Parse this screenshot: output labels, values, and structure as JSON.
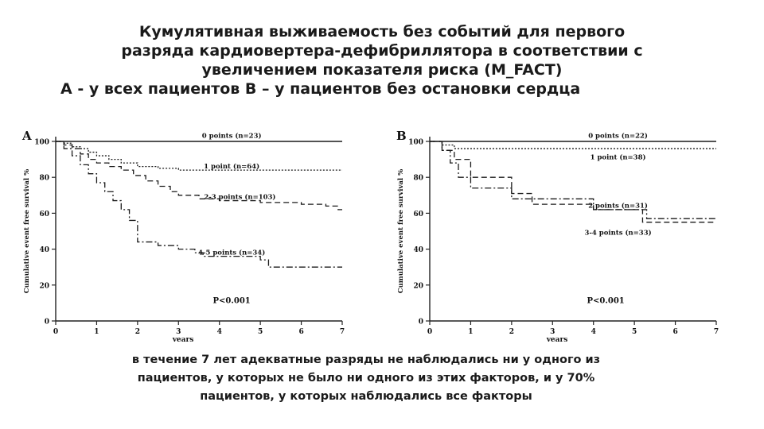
{
  "slide": {
    "title_lines": [
      "Кумулятивная выживаемость без событий для первого",
      "разряда кардиовертера-дефибриллятора в соответствии с",
      "увеличением показателя риска (M_FACT)",
      "A - у всех пациентов B – у пациентов без остановки сердца"
    ],
    "caption_lines": [
      "в течение 7 лет адекватные разряды не наблюдались ни у одного из",
      "пациентов, у которых не было ни одного из этих факторов, и у 70%",
      "пациентов, у которых наблюдались все факторы"
    ]
  },
  "colors": {
    "line": "#1a1a1a",
    "axis": "#222222",
    "background": "#ffffff"
  },
  "chart_data": [
    {
      "panel": "A",
      "type": "line",
      "step": true,
      "xlabel": "years",
      "ylabel": "Cumulative event free survival %",
      "xlim": [
        0,
        7
      ],
      "ylim": [
        0,
        100
      ],
      "xticks": [
        0,
        1,
        2,
        3,
        4,
        5,
        6,
        7
      ],
      "yticks": [
        0,
        20,
        40,
        60,
        80,
        100
      ],
      "annotation": "P<0.001",
      "series": [
        {
          "name": "0 points (n=23)",
          "style": "solid",
          "x": [
            0,
            7
          ],
          "y": [
            100,
            100
          ]
        },
        {
          "name": "1 point (n=64)",
          "style": "dotted",
          "x": [
            0,
            0.2,
            0.4,
            0.6,
            0.8,
            1.0,
            1.3,
            1.6,
            2.0,
            2.5,
            3.0,
            7
          ],
          "y": [
            100,
            99,
            97,
            96,
            94,
            92,
            90,
            88,
            86,
            85,
            84,
            84
          ]
        },
        {
          "name": "2-3 points (n=103)",
          "style": "dashed",
          "x": [
            0,
            0.2,
            0.4,
            0.6,
            0.8,
            1.0,
            1.3,
            1.6,
            1.9,
            2.2,
            2.5,
            2.8,
            3.0,
            3.5,
            4.0,
            5.0,
            5.5,
            6.0,
            6.6,
            6.9,
            7
          ],
          "y": [
            100,
            98,
            96,
            93,
            90,
            88,
            86,
            84,
            81,
            78,
            75,
            72,
            70,
            68,
            67,
            66,
            66,
            65,
            64,
            62,
            62
          ]
        },
        {
          "name": "4-5 points (n=34)",
          "style": "dashdot",
          "x": [
            0,
            0.2,
            0.4,
            0.6,
            0.8,
            1.0,
            1.2,
            1.4,
            1.6,
            1.8,
            2.0,
            2.5,
            3.0,
            3.4,
            3.6,
            5.0,
            5.2,
            7
          ],
          "y": [
            100,
            96,
            92,
            87,
            82,
            77,
            72,
            67,
            62,
            56,
            44,
            42,
            40,
            38,
            36,
            34,
            30,
            30
          ]
        }
      ]
    },
    {
      "panel": "B",
      "type": "line",
      "step": true,
      "xlabel": "years",
      "ylabel": "Cumulative event free survival %",
      "xlim": [
        0,
        7
      ],
      "ylim": [
        0,
        100
      ],
      "xticks": [
        0,
        1,
        2,
        3,
        4,
        5,
        6,
        7
      ],
      "yticks": [
        0,
        20,
        40,
        60,
        80,
        100
      ],
      "annotation": "P<0.001",
      "series": [
        {
          "name": "0 points (n=22)",
          "style": "solid",
          "x": [
            0,
            7
          ],
          "y": [
            100,
            100
          ]
        },
        {
          "name": "1 point (n=38)",
          "style": "dotted",
          "x": [
            0,
            0.3,
            0.6,
            7
          ],
          "y": [
            100,
            98,
            96,
            96
          ]
        },
        {
          "name": "2 points (n=31)",
          "style": "dashed",
          "x": [
            0,
            0.3,
            0.6,
            1.0,
            2.0,
            2.5,
            4.0,
            5.2,
            7
          ],
          "y": [
            100,
            95,
            90,
            80,
            71,
            65,
            62,
            55,
            55
          ]
        },
        {
          "name": "3-4 points (n=33)",
          "style": "dashdot",
          "x": [
            0,
            0.3,
            0.5,
            0.7,
            1.0,
            2.0,
            4.0,
            5.3,
            7
          ],
          "y": [
            100,
            95,
            88,
            80,
            74,
            68,
            62,
            57,
            57
          ]
        }
      ]
    }
  ]
}
